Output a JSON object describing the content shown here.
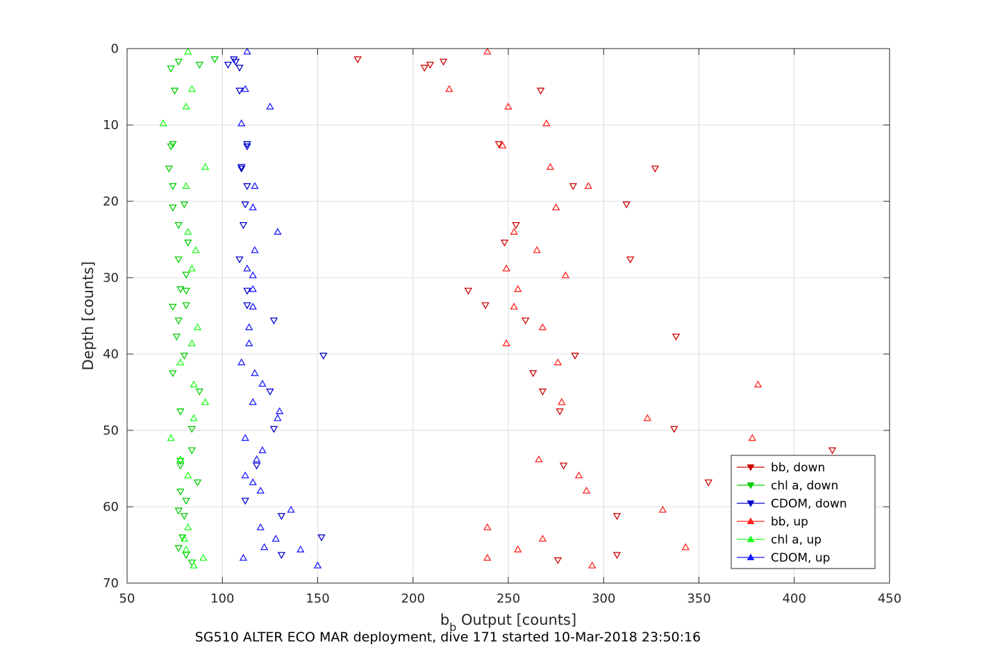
{
  "chart_data": {
    "type": "scatter",
    "title": "",
    "caption": "SG510 ALTER ECO MAR deployment, dive 171 started 10-Mar-2018 23:50:16",
    "xlabel_main": "b",
    "xlabel_sub": "b",
    "xlabel_rest": " Output [counts]",
    "ylabel": "Depth [counts]",
    "xlim": [
      50,
      450
    ],
    "ylim": [
      0,
      70
    ],
    "y_reversed": true,
    "xticks": [
      50,
      100,
      150,
      200,
      250,
      300,
      350,
      400,
      450
    ],
    "yticks": [
      0,
      10,
      20,
      30,
      40,
      50,
      60,
      70
    ],
    "grid": true,
    "legend_position": "bottom-right",
    "series": [
      {
        "name": "bb, down",
        "color": "#cc0000",
        "marker": "triangle-down",
        "points": [
          [
            171,
            1.4
          ],
          [
            216,
            1.7
          ],
          [
            209,
            2.1
          ],
          [
            206,
            2.5
          ],
          [
            267,
            5.5
          ],
          [
            245,
            12.5
          ],
          [
            327,
            15.7
          ],
          [
            284,
            18.0
          ],
          [
            312,
            20.4
          ],
          [
            254,
            23.1
          ],
          [
            248,
            25.4
          ],
          [
            314,
            27.6
          ],
          [
            229,
            31.7
          ],
          [
            238,
            33.6
          ],
          [
            259,
            35.6
          ],
          [
            338,
            37.7
          ],
          [
            285,
            40.2
          ],
          [
            263,
            42.5
          ],
          [
            268,
            44.9
          ],
          [
            277,
            47.5
          ],
          [
            337,
            49.8
          ],
          [
            420,
            52.6
          ],
          [
            279,
            54.6
          ],
          [
            355,
            56.8
          ],
          [
            307,
            61.2
          ],
          [
            307,
            66.3
          ],
          [
            276,
            67.0
          ]
        ]
      },
      {
        "name": "chl a, down",
        "color": "#00cc00",
        "marker": "triangle-down",
        "points": [
          [
            96,
            1.4
          ],
          [
            77,
            1.7
          ],
          [
            88,
            2.1
          ],
          [
            73,
            2.6
          ],
          [
            75,
            5.5
          ],
          [
            74,
            12.5
          ],
          [
            73,
            12.8
          ],
          [
            72,
            15.7
          ],
          [
            74,
            18.0
          ],
          [
            74,
            20.8
          ],
          [
            80,
            20.4
          ],
          [
            77,
            23.1
          ],
          [
            82,
            25.4
          ],
          [
            77,
            27.6
          ],
          [
            81,
            29.6
          ],
          [
            81,
            31.7
          ],
          [
            78,
            31.5
          ],
          [
            74,
            33.8
          ],
          [
            81,
            33.6
          ],
          [
            77,
            35.6
          ],
          [
            76,
            37.7
          ],
          [
            80,
            40.2
          ],
          [
            74,
            42.5
          ],
          [
            88,
            44.9
          ],
          [
            78,
            47.5
          ],
          [
            84,
            49.8
          ],
          [
            84,
            52.6
          ],
          [
            78,
            54.6
          ],
          [
            87,
            56.8
          ],
          [
            81,
            59.2
          ],
          [
            77,
            60.5
          ],
          [
            80,
            61.2
          ],
          [
            77,
            65.4
          ],
          [
            81,
            66.3
          ],
          [
            79,
            64.0
          ],
          [
            84,
            67.3
          ],
          [
            78,
            58.0
          ],
          [
            78,
            54.0
          ]
        ]
      },
      {
        "name": "CDOM, down",
        "color": "#0000cc",
        "marker": "triangle-down",
        "points": [
          [
            106,
            1.4
          ],
          [
            107,
            1.7
          ],
          [
            103,
            2.1
          ],
          [
            109,
            2.5
          ],
          [
            109,
            5.5
          ],
          [
            113,
            12.5
          ],
          [
            110,
            15.7
          ],
          [
            113,
            18.0
          ],
          [
            112,
            20.4
          ],
          [
            111,
            23.1
          ],
          [
            109,
            27.6
          ],
          [
            113,
            31.7
          ],
          [
            113,
            33.6
          ],
          [
            127,
            35.6
          ],
          [
            153,
            40.2
          ],
          [
            125,
            44.9
          ],
          [
            127,
            49.8
          ],
          [
            118,
            54.6
          ],
          [
            112,
            59.2
          ],
          [
            131,
            61.2
          ],
          [
            152,
            64.0
          ],
          [
            131,
            66.3
          ],
          [
            113,
            12.8
          ],
          [
            110,
            15.5
          ]
        ]
      },
      {
        "name": "bb, up",
        "color": "#ff2020",
        "marker": "triangle-up",
        "points": [
          [
            239,
            0.4
          ],
          [
            219,
            5.3
          ],
          [
            250,
            7.6
          ],
          [
            270,
            9.8
          ],
          [
            247,
            12.7
          ],
          [
            272,
            15.5
          ],
          [
            292,
            18.0
          ],
          [
            275,
            20.8
          ],
          [
            253,
            24.0
          ],
          [
            265,
            26.4
          ],
          [
            249,
            28.8
          ],
          [
            280,
            29.7
          ],
          [
            255,
            31.5
          ],
          [
            253,
            33.8
          ],
          [
            268,
            36.5
          ],
          [
            249,
            38.6
          ],
          [
            276,
            41.1
          ],
          [
            381,
            44.0
          ],
          [
            278,
            46.3
          ],
          [
            323,
            48.4
          ],
          [
            378,
            51.0
          ],
          [
            266,
            53.8
          ],
          [
            287,
            55.9
          ],
          [
            291,
            57.9
          ],
          [
            331,
            60.4
          ],
          [
            239,
            62.7
          ],
          [
            268,
            64.2
          ],
          [
            343,
            65.3
          ],
          [
            255,
            65.6
          ],
          [
            239,
            66.7
          ],
          [
            294,
            67.7
          ]
        ]
      },
      {
        "name": "chl a, up",
        "color": "#20ff20",
        "marker": "triangle-up",
        "points": [
          [
            82,
            0.4
          ],
          [
            84,
            5.3
          ],
          [
            81,
            7.6
          ],
          [
            69,
            9.8
          ],
          [
            91,
            15.5
          ],
          [
            81,
            18.0
          ],
          [
            82,
            24.0
          ],
          [
            86,
            26.4
          ],
          [
            84,
            28.8
          ],
          [
            87,
            36.5
          ],
          [
            84,
            38.6
          ],
          [
            78,
            41.1
          ],
          [
            85,
            44.0
          ],
          [
            91,
            46.3
          ],
          [
            85,
            48.4
          ],
          [
            73,
            51.0
          ],
          [
            78,
            53.8
          ],
          [
            82,
            55.9
          ],
          [
            82,
            62.7
          ],
          [
            80,
            64.2
          ],
          [
            81,
            65.6
          ],
          [
            90,
            66.7
          ],
          [
            85,
            67.7
          ]
        ]
      },
      {
        "name": "CDOM, up",
        "color": "#1a1aff",
        "marker": "triangle-up",
        "points": [
          [
            113,
            0.4
          ],
          [
            112,
            5.3
          ],
          [
            125,
            7.6
          ],
          [
            110,
            9.8
          ],
          [
            117,
            18.0
          ],
          [
            116,
            20.8
          ],
          [
            129,
            24.0
          ],
          [
            117,
            26.4
          ],
          [
            113,
            28.8
          ],
          [
            116,
            29.7
          ],
          [
            116,
            31.5
          ],
          [
            116,
            33.8
          ],
          [
            114,
            36.5
          ],
          [
            114,
            38.6
          ],
          [
            110,
            41.1
          ],
          [
            121,
            43.9
          ],
          [
            116,
            46.3
          ],
          [
            129,
            48.4
          ],
          [
            112,
            51.0
          ],
          [
            121,
            52.6
          ],
          [
            118,
            53.8
          ],
          [
            112,
            55.9
          ],
          [
            120,
            57.9
          ],
          [
            136,
            60.4
          ],
          [
            120,
            62.7
          ],
          [
            128,
            64.2
          ],
          [
            141,
            65.6
          ],
          [
            111,
            66.7
          ],
          [
            150,
            67.7
          ],
          [
            122,
            65.3
          ],
          [
            117,
            42.5
          ],
          [
            130,
            47.5
          ],
          [
            116,
            56.8
          ]
        ]
      }
    ]
  }
}
